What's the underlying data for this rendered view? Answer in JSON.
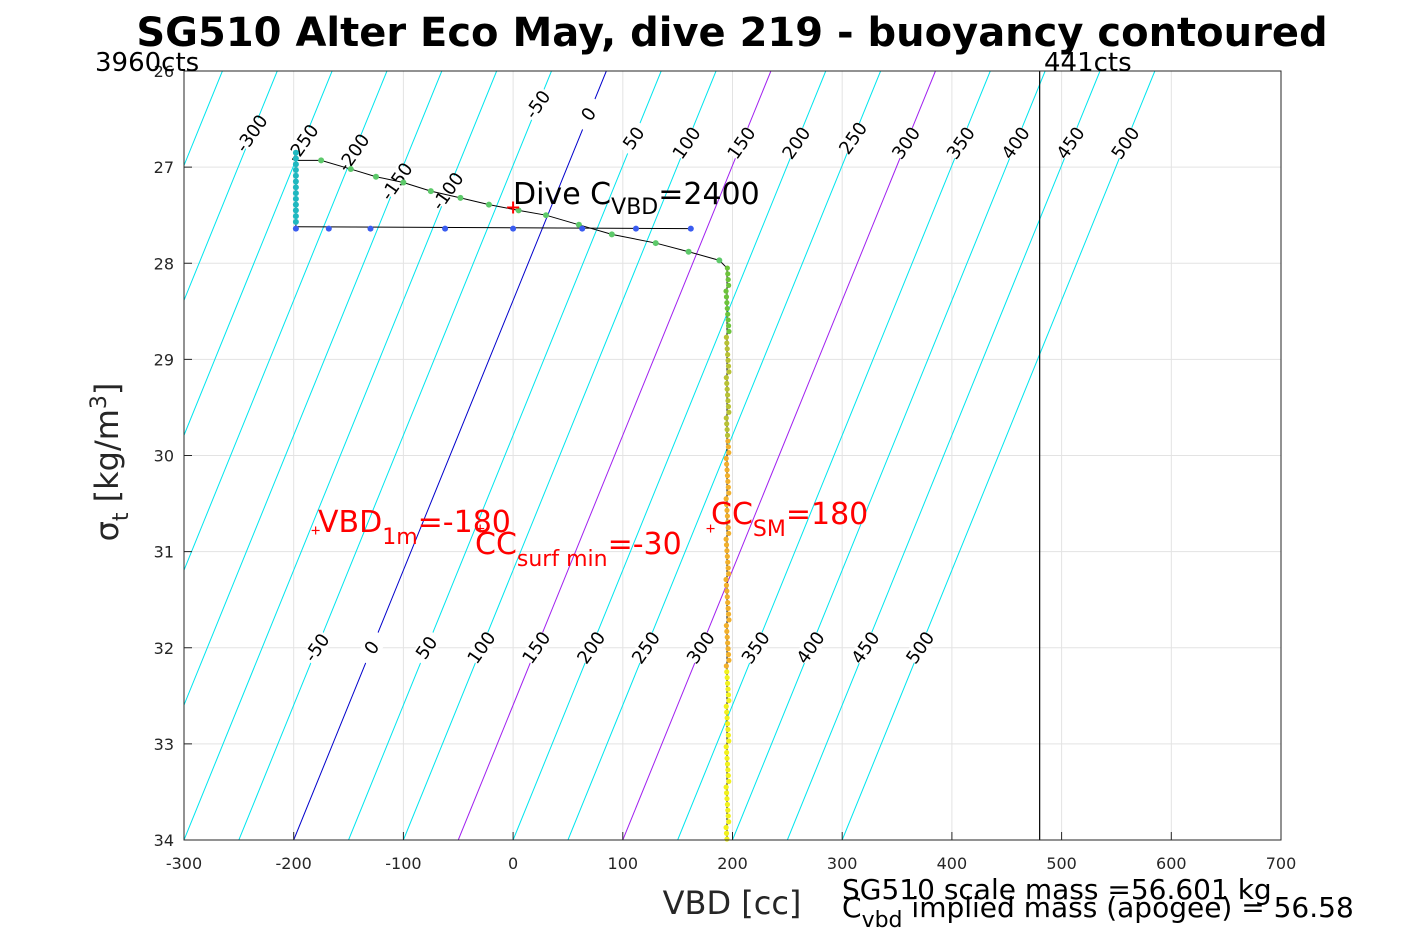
{
  "chart_data": {
    "type": "line",
    "title": "SG510 Alter Eco May, dive 219 - buoyancy contoured",
    "xlabel": "VBD [cc]",
    "ylabel": {
      "sym": "σ",
      "sub": "t",
      "unit_pre": " [kg/m",
      "sup": "3",
      "unit_post": "]"
    },
    "xlim": [
      -300,
      700
    ],
    "ylim": [
      26,
      34
    ],
    "y_reversed": true,
    "grid": true,
    "xticks": [
      "-300",
      "-200",
      "-100",
      "0",
      "100",
      "200",
      "300",
      "400",
      "500",
      "600",
      "700"
    ],
    "yticks": [
      "26",
      "27",
      "28",
      "29",
      "30",
      "31",
      "32",
      "33",
      "34"
    ],
    "vline_x": 480,
    "left_counts": "3960cts",
    "right_counts": "441cts",
    "contours": {
      "levels": [
        -300,
        -250,
        -200,
        -150,
        -100,
        -50,
        0,
        50,
        100,
        150,
        200,
        250,
        300,
        350,
        400,
        450,
        500
      ],
      "zero_color": "#0000cc",
      "highlight_levels": [
        150,
        300
      ],
      "highlight_color": "#a020f0",
      "color": "#00e5ee",
      "top_labels": [
        "-300",
        "-250",
        "-200",
        "-150",
        "-100",
        "-50",
        "0",
        "50",
        "100",
        "150",
        "200",
        "250",
        "300",
        "350",
        "400",
        "450",
        "500"
      ],
      "bottom_labels": [
        "-50",
        "0",
        "50",
        "100",
        "150",
        "200",
        "250",
        "300",
        "350",
        "400",
        "450",
        "500"
      ]
    },
    "dive_cvbd": {
      "text": "Dive C",
      "sub": "VBD",
      "value": "=2400",
      "x": 0,
      "y": 27.42
    },
    "trace": {
      "x": [
        -198,
        -198,
        -198,
        -198,
        -175,
        -148,
        -125,
        -100,
        -75,
        -48,
        -22,
        5,
        30,
        60,
        90,
        130,
        160,
        188,
        195,
        195,
        195,
        195
      ],
      "y": [
        27.62,
        27.3,
        27.0,
        26.93,
        26.93,
        27.02,
        27.1,
        27.16,
        27.25,
        27.32,
        27.39,
        27.45,
        27.5,
        27.6,
        27.7,
        27.79,
        27.88,
        27.97,
        28.05,
        29.0,
        31.0,
        34.0
      ]
    },
    "spurs": {
      "x": [
        -198,
        -168,
        -130,
        -62,
        0,
        63,
        112,
        162
      ],
      "y": 27.64
    },
    "annotations": [
      {
        "main": "VBD",
        "sub": "1m",
        "value": "=-180",
        "x": -180,
        "y": 30.8
      },
      {
        "main": "CC",
        "sub": "surf min",
        "value": "=-30",
        "x": 180,
        "y": 30.8
      },
      {
        "main": "CC",
        "sub": "SM",
        "value": "=180",
        "x": 180,
        "y": 30.8
      }
    ]
  },
  "footer": {
    "mass_line": "SG510 scale mass =56.601 kg",
    "implied_main": "C",
    "implied_sub": "vbd",
    "implied_text": " implied mass (apogee) = 56.58"
  }
}
